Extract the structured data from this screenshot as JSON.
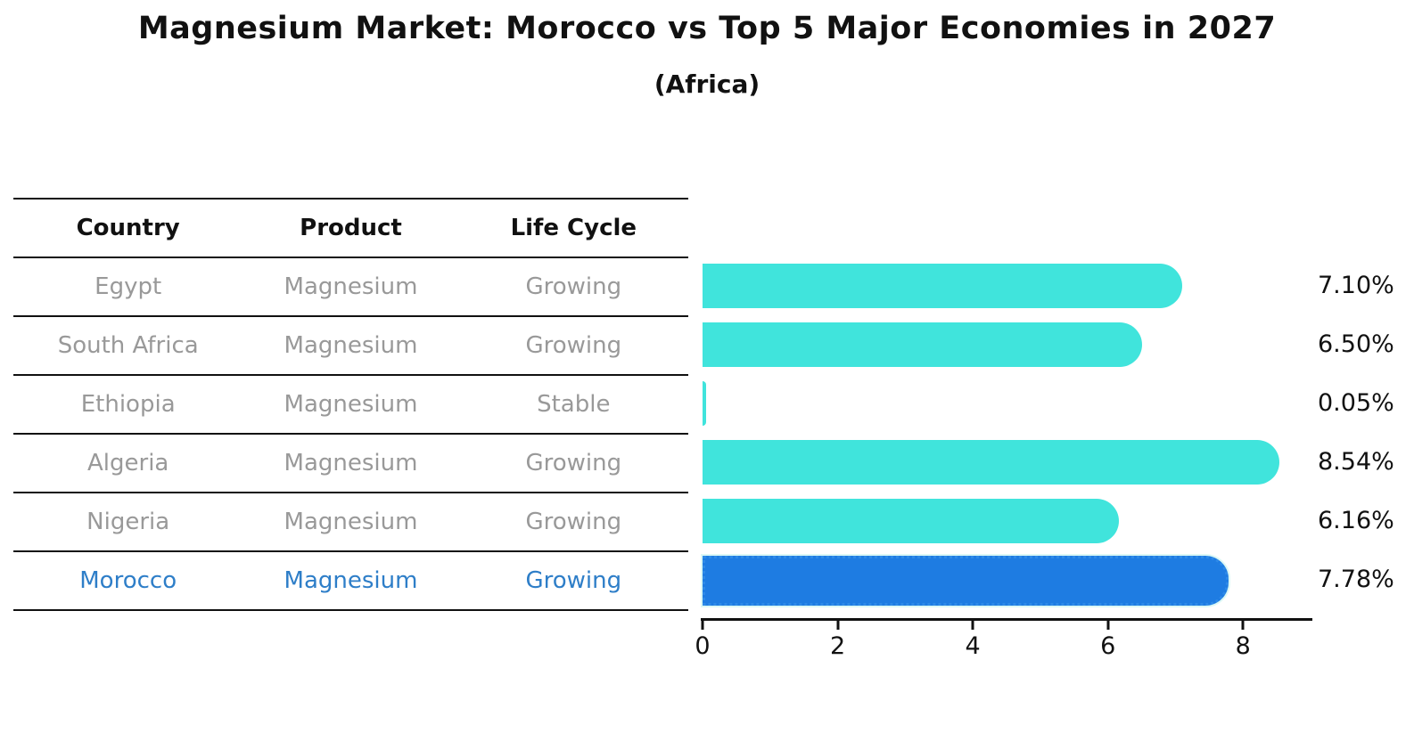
{
  "title": "Magnesium Market: Morocco vs Top 5 Major Economies in 2027",
  "subtitle": "(Africa)",
  "table": {
    "headers": [
      "Country",
      "Product",
      "Life Cycle"
    ],
    "rows": [
      {
        "country": "Egypt",
        "product": "Magnesium",
        "life_cycle": "Growing",
        "highlighted": false
      },
      {
        "country": "South Africa",
        "product": "Magnesium",
        "life_cycle": "Growing",
        "highlighted": false
      },
      {
        "country": "Ethiopia",
        "product": "Magnesium",
        "life_cycle": "Stable",
        "highlighted": false
      },
      {
        "country": "Algeria",
        "product": "Magnesium",
        "life_cycle": "Growing",
        "highlighted": false
      },
      {
        "country": "Nigeria",
        "product": "Magnesium",
        "life_cycle": "Growing",
        "highlighted": false
      },
      {
        "country": "Morocco",
        "product": "Magnesium",
        "life_cycle": "Growing",
        "highlighted": true
      }
    ]
  },
  "chart_data": {
    "type": "bar",
    "orientation": "horizontal",
    "title": "Magnesium Market: Morocco vs Top 5 Major Economies in 2027",
    "subtitle": "(Africa)",
    "categories": [
      "Egypt",
      "South Africa",
      "Ethiopia",
      "Algeria",
      "Nigeria",
      "Morocco"
    ],
    "values": [
      7.1,
      6.5,
      0.05,
      8.54,
      6.16,
      7.78
    ],
    "value_labels": [
      "7.10%",
      "6.50%",
      "0.05%",
      "8.54%",
      "6.16%",
      "7.78%"
    ],
    "xlabel": "",
    "ylabel": "",
    "xlim": [
      0,
      9
    ],
    "xticks": [
      0,
      2,
      4,
      6,
      8
    ],
    "grid": false,
    "legend": false,
    "bar_color": "#40e4dc",
    "highlight_index": 5,
    "highlight_bar_color": "#1e7ce2",
    "highlight_text_color": "#2e7ec8",
    "row_text_color": "#999999",
    "axis_color": "#111111"
  }
}
